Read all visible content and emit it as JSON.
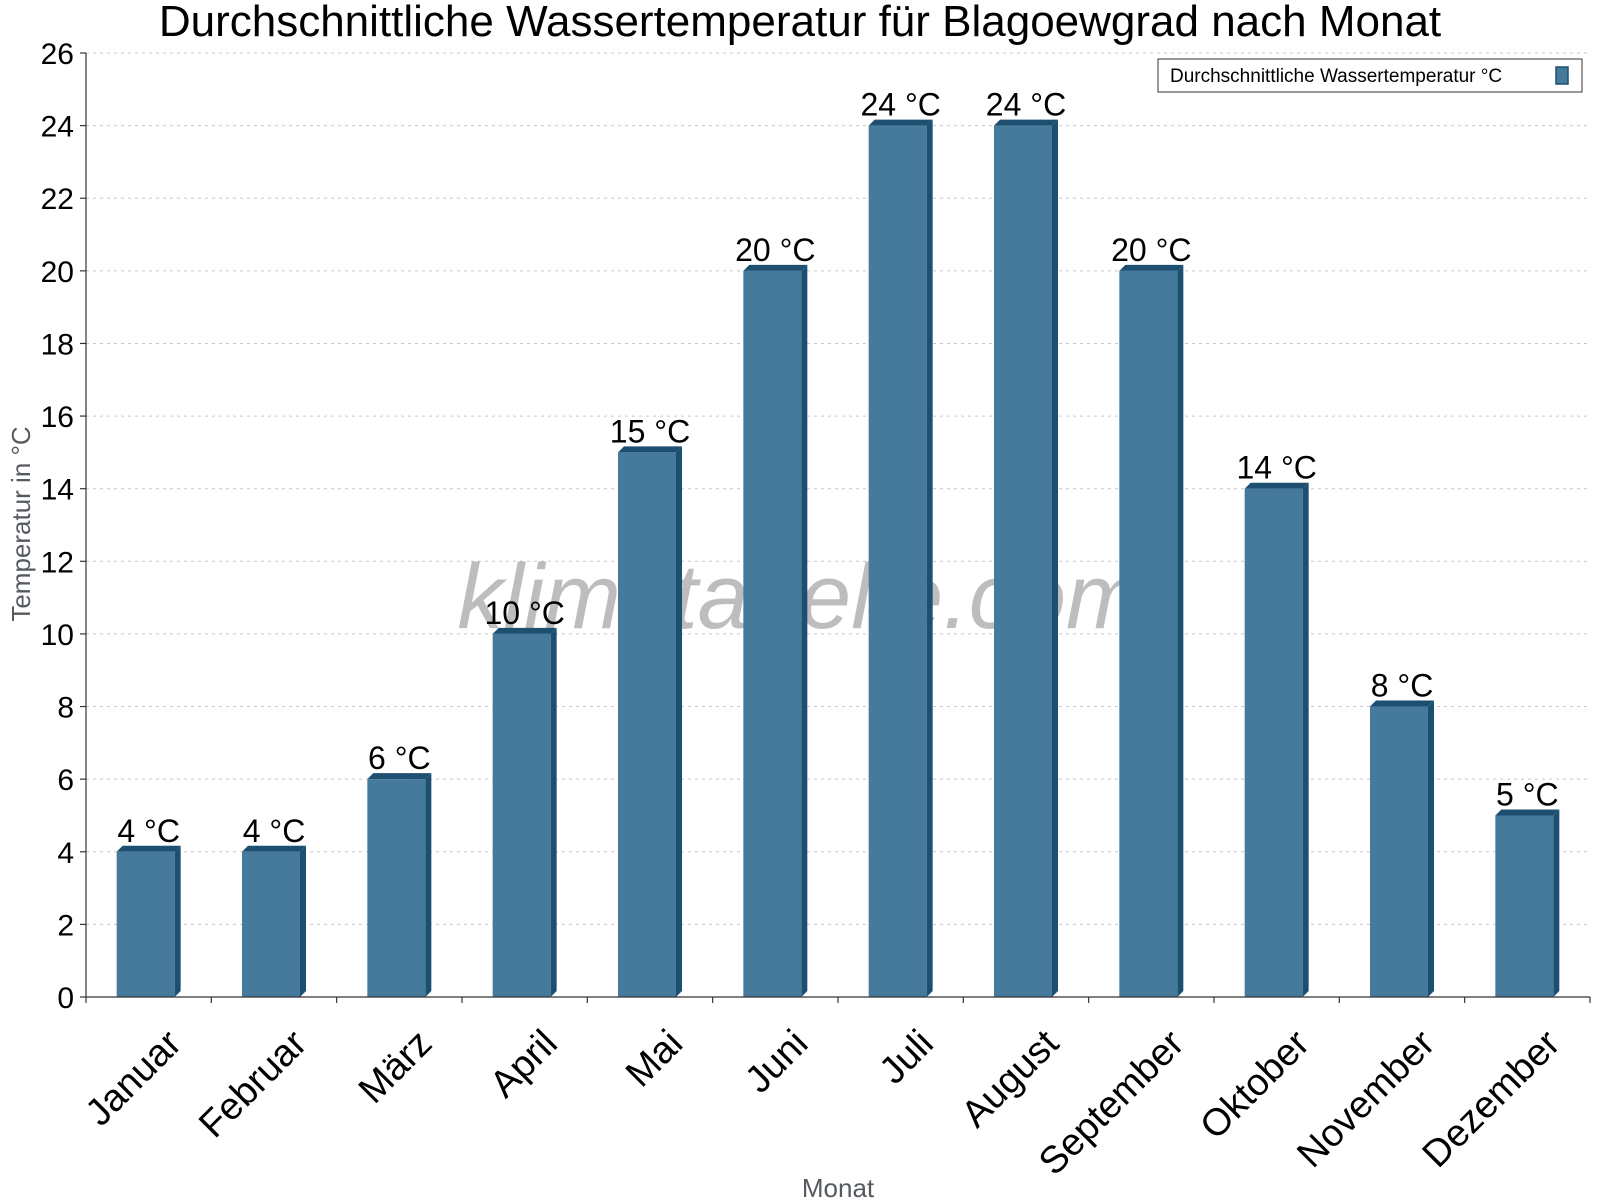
{
  "chart_data": {
    "type": "bar",
    "title": "Durchschnittliche Wassertemperatur für Blagoewgrad nach Monat",
    "xlabel": "Monat",
    "ylabel": "Temperatur in °C",
    "categories": [
      "Januar",
      "Februar",
      "März",
      "April",
      "Mai",
      "Juni",
      "Juli",
      "August",
      "September",
      "Oktober",
      "November",
      "Dezember"
    ],
    "series": [
      {
        "name": "Durchschnittliche Wassertemperatur °C",
        "values": [
          4,
          4,
          6,
          10,
          15,
          20,
          24,
          24,
          20,
          14,
          8,
          5
        ],
        "labels": [
          "4 °C",
          "4 °C",
          "6 °C",
          "10 °C",
          "15 °C",
          "20 °C",
          "24 °C",
          "24 °C",
          "20 °C",
          "14 °C",
          "8 °C",
          "5 °C"
        ]
      }
    ],
    "ylim": [
      0,
      26
    ],
    "yticks": [
      0,
      2,
      4,
      6,
      8,
      10,
      12,
      14,
      16,
      18,
      20,
      22,
      24,
      26
    ],
    "grid": true,
    "legend_position": "top-right",
    "colors": {
      "bar": "#467a9c",
      "bar_shade": "#1d4f70"
    }
  },
  "watermark": "klimatabelle.com"
}
